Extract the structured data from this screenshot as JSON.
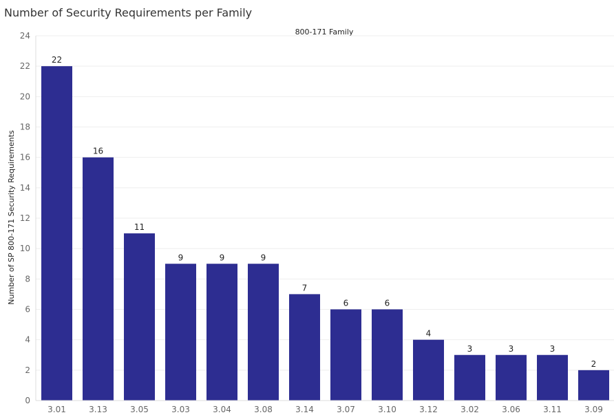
{
  "chart_data": {
    "type": "bar",
    "title": "Number of Security Requirements per Family",
    "column_header": "800-171 Family",
    "ylabel": "Number of SP 800-171 Security Requirements",
    "xlabel": "",
    "ylim": [
      0,
      24
    ],
    "yticks": [
      0,
      2,
      4,
      6,
      8,
      10,
      12,
      14,
      16,
      18,
      20,
      22,
      24
    ],
    "categories": [
      "3.01",
      "3.13",
      "3.05",
      "3.03",
      "3.04",
      "3.08",
      "3.14",
      "3.07",
      "3.10",
      "3.12",
      "3.02",
      "3.06",
      "3.11",
      "3.09"
    ],
    "values": [
      22,
      16,
      11,
      9,
      9,
      9,
      7,
      6,
      6,
      4,
      3,
      3,
      3,
      2
    ],
    "bar_color": "#2d2d91",
    "grid": true,
    "legend": "none"
  }
}
